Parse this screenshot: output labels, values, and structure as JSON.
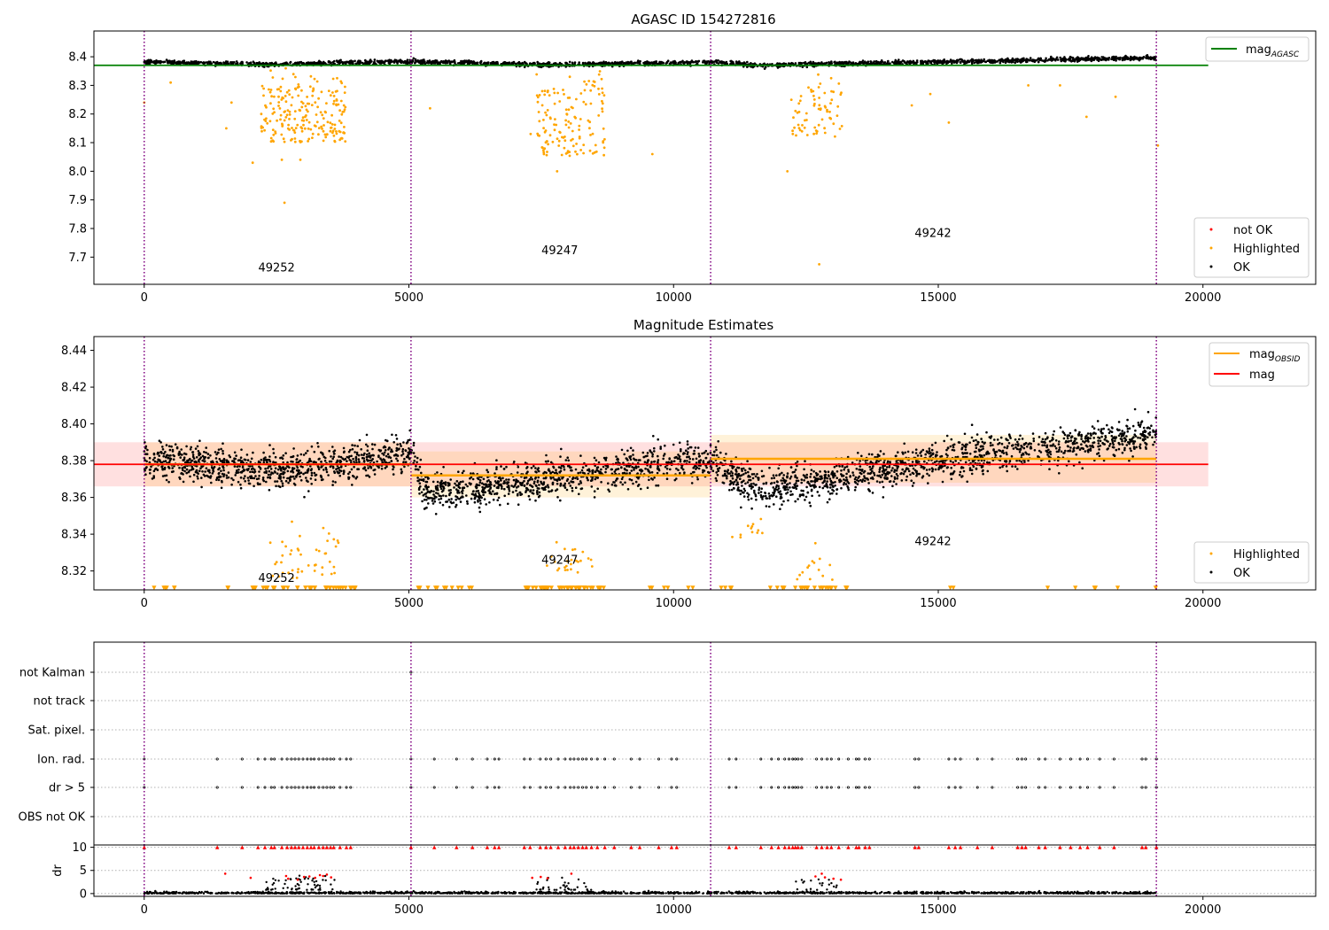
{
  "chart_data": [
    {
      "type": "scatter",
      "title": "AGASC ID 154272816",
      "xlabel": "",
      "ylabel": "",
      "xlim": [
        -950,
        22130
      ],
      "ylim": [
        7.605,
        8.49
      ],
      "x_ticks": [
        0,
        5000,
        10000,
        15000,
        20000
      ],
      "x_tick_labels": [
        "0",
        "5000",
        "10000",
        "15000",
        "20000"
      ],
      "y_ticks": [
        7.7,
        7.8,
        7.9,
        8.0,
        8.1,
        8.2,
        8.3,
        8.4
      ],
      "y_tick_labels": [
        "7.7",
        "7.8",
        "7.9",
        "8.0",
        "8.1",
        "8.2",
        "8.3",
        "8.4"
      ],
      "obs_boundaries": [
        0,
        5040,
        10700,
        19120
      ],
      "obs_labels": [
        {
          "text": "49252",
          "x": 2500,
          "y": 7.65
        },
        {
          "text": "49247",
          "x": 7850,
          "y": 7.71
        },
        {
          "text": "49242",
          "x": 14900,
          "y": 7.77
        }
      ],
      "mag_agasc": {
        "value": 8.37,
        "x_range": [
          -950,
          20100
        ]
      },
      "legend_lines": [
        {
          "name": "mag",
          "sub": "AGASC",
          "color": "#008000"
        }
      ],
      "legend_points": [
        {
          "name": "not OK",
          "color": "#ff0000"
        },
        {
          "name": "Highlighted",
          "color": "#ffa500"
        },
        {
          "name": "OK",
          "color": "#000000"
        }
      ],
      "ok_trend": [
        [
          0,
          8.382
        ],
        [
          2500,
          8.374
        ],
        [
          5040,
          8.384
        ],
        [
          7500,
          8.372
        ],
        [
          10700,
          8.381
        ],
        [
          11600,
          8.37
        ],
        [
          15000,
          8.382
        ],
        [
          19120,
          8.397
        ]
      ],
      "ok_scatter": 0.0065,
      "highlighted_clusters": [
        {
          "x": [
            2200,
            3800
          ],
          "y": [
            8.1,
            8.36
          ],
          "count": 220
        },
        {
          "x": [
            7400,
            8700
          ],
          "y": [
            8.05,
            8.36
          ],
          "count": 140
        },
        {
          "x": [
            12200,
            13200
          ],
          "y": [
            8.12,
            8.36
          ],
          "count": 70
        }
      ],
      "highlighted_points": [
        [
          0,
          8.24
        ],
        [
          500,
          8.31
        ],
        [
          1550,
          8.15
        ],
        [
          1650,
          8.24
        ],
        [
          2050,
          8.03
        ],
        [
          2600,
          8.04
        ],
        [
          2650,
          7.89
        ],
        [
          2950,
          8.04
        ],
        [
          5400,
          8.22
        ],
        [
          7300,
          8.13
        ],
        [
          7550,
          8.06
        ],
        [
          7800,
          8.0
        ],
        [
          9600,
          8.06
        ],
        [
          12150,
          8.0
        ],
        [
          12750,
          7.675
        ],
        [
          15200,
          8.17
        ],
        [
          16700,
          8.3
        ],
        [
          17300,
          8.3
        ],
        [
          17800,
          8.19
        ],
        [
          18350,
          8.26
        ],
        [
          19150,
          8.09
        ],
        [
          14500,
          8.23
        ],
        [
          14850,
          8.27
        ]
      ]
    },
    {
      "type": "scatter",
      "title": "Magnitude Estimates",
      "xlabel": "",
      "ylabel": "",
      "xlim": [
        -950,
        22130
      ],
      "ylim": [
        8.3097,
        8.4475
      ],
      "x_ticks": [
        0,
        5000,
        10000,
        15000,
        20000
      ],
      "x_tick_labels": [
        "0",
        "5000",
        "10000",
        "15000",
        "20000"
      ],
      "y_ticks": [
        8.32,
        8.34,
        8.36,
        8.38,
        8.4,
        8.42,
        8.44
      ],
      "y_tick_labels": [
        "8.32",
        "8.34",
        "8.36",
        "8.38",
        "8.40",
        "8.42",
        "8.44"
      ],
      "obs_boundaries": [
        0,
        5040,
        10700,
        19120
      ],
      "obs_labels": [
        {
          "text": "49252",
          "x": 2500,
          "y": 8.314
        },
        {
          "text": "49247",
          "x": 7850,
          "y": 8.324
        },
        {
          "text": "49242",
          "x": 14900,
          "y": 8.334
        }
      ],
      "mag": {
        "value": 8.378,
        "band": [
          8.366,
          8.39
        ],
        "x_range": [
          -950,
          20100
        ]
      },
      "mag_obsid": [
        {
          "x_range": [
            0,
            5040
          ],
          "value": 8.378,
          "band": [
            8.366,
            8.39
          ]
        },
        {
          "x_range": [
            5040,
            10700
          ],
          "value": 8.372,
          "band": [
            8.36,
            8.385
          ]
        },
        {
          "x_range": [
            10700,
            19120
          ],
          "value": 8.381,
          "band": [
            8.368,
            8.394
          ]
        }
      ],
      "legend_lines": [
        {
          "name": "mag",
          "sub": "OBSID",
          "color": "#ffa500"
        },
        {
          "name": "mag",
          "sub": "",
          "color": "#ff0000"
        }
      ],
      "legend_points": [
        {
          "name": "Highlighted",
          "color": "#ffa500"
        },
        {
          "name": "OK",
          "color": "#000000"
        }
      ],
      "ok_trend": [
        [
          0,
          8.381
        ],
        [
          2500,
          8.374
        ],
        [
          5040,
          8.384
        ],
        [
          5300,
          8.362
        ],
        [
          7500,
          8.37
        ],
        [
          10700,
          8.381
        ],
        [
          11600,
          8.364
        ],
        [
          15000,
          8.38
        ],
        [
          19120,
          8.395
        ]
      ],
      "ok_scatter": 0.0085,
      "highlighted_clusters": [
        {
          "x": [
            2300,
            3700
          ],
          "y": [
            8.315,
            8.35
          ],
          "count": 45
        },
        {
          "x": [
            7600,
            8500
          ],
          "y": [
            8.318,
            8.338
          ],
          "count": 25
        },
        {
          "x": [
            11100,
            11800
          ],
          "y": [
            8.338,
            8.35
          ],
          "count": 12
        },
        {
          "x": [
            12300,
            13000
          ],
          "y": [
            8.315,
            8.34
          ],
          "count": 14
        }
      ],
      "clipped_marker_y": 8.3107,
      "clipped_groups": [
        [
          0,
          600,
          6
        ],
        [
          1500,
          1700,
          2
        ],
        [
          2000,
          4000,
          40
        ],
        [
          5000,
          6200,
          12
        ],
        [
          7200,
          8700,
          45
        ],
        [
          9500,
          10500,
          6
        ],
        [
          10700,
          11200,
          4
        ],
        [
          11800,
          13300,
          25
        ],
        [
          14900,
          15300,
          2
        ],
        [
          16600,
          18500,
          5
        ],
        [
          19100,
          19120,
          1
        ]
      ]
    },
    {
      "type": "scatter",
      "title": "",
      "xlabel": "",
      "ylabel": "",
      "xlim": [
        -950,
        22130
      ],
      "obs_boundaries": [
        0,
        5040,
        10700,
        19120
      ],
      "flag_rows": [
        "not Kalman",
        "not track",
        "Sat. pixel.",
        "Ion. rad.",
        "dr > 5",
        "OBS not OK"
      ],
      "flag_x": [
        0,
        1380,
        1850,
        2150,
        2280,
        2400,
        2460,
        2600,
        2700,
        2780,
        2850,
        2920,
        3000,
        3080,
        3150,
        3210,
        3300,
        3380,
        3450,
        3520,
        3580,
        3700,
        3820,
        3900,
        5040,
        5480,
        5900,
        6200,
        6480,
        6620,
        6700,
        7180,
        7290,
        7480,
        7590,
        7680,
        7820,
        7950,
        8050,
        8120,
        8200,
        8280,
        8350,
        8450,
        8560,
        8700,
        8880,
        9200,
        9360,
        9720,
        9960,
        10060,
        11050,
        11180,
        11650,
        11850,
        11980,
        12100,
        12180,
        12250,
        12300,
        12350,
        12420,
        12700,
        12800,
        12900,
        12980,
        13120,
        13300,
        13450,
        13500,
        13620,
        13700,
        14560,
        14630,
        15200,
        15320,
        15420,
        15740,
        16020,
        16500,
        16580,
        16650,
        16900,
        17020,
        17300,
        17500,
        17680,
        17820,
        18050,
        18320,
        18850,
        18920,
        19120
      ],
      "not_kalman_x": [
        5040
      ]
    },
    {
      "type": "scatter",
      "title": "",
      "xlabel": "",
      "ylabel": "dr",
      "xlim": [
        -950,
        22130
      ],
      "ylim": [
        -0.6,
        10.5
      ],
      "x_ticks": [
        0,
        5000,
        10000,
        15000,
        20000
      ],
      "x_tick_labels": [
        "0",
        "5000",
        "10000",
        "15000",
        "20000"
      ],
      "y_ticks": [
        0,
        5,
        10
      ],
      "y_tick_labels": [
        "0",
        "5",
        "10"
      ],
      "obs_boundaries": [
        0,
        5040,
        10700,
        19120
      ],
      "dr_baseline_max": 0.9,
      "dr_clip": 10,
      "dr_elevated": [
        {
          "x": [
            2300,
            3600
          ],
          "max": 4.0,
          "count": 60
        },
        {
          "x": [
            7400,
            8500
          ],
          "max": 3.5,
          "count": 35
        },
        {
          "x": [
            12300,
            13100
          ],
          "max": 3.2,
          "count": 20
        }
      ],
      "dr_red_points": [
        [
          1530,
          4.3
        ],
        [
          2010,
          3.4
        ],
        [
          2680,
          3.8
        ],
        [
          2720,
          3.2
        ],
        [
          2900,
          3.0
        ],
        [
          3020,
          3.6
        ],
        [
          3120,
          3.7
        ],
        [
          3230,
          3.4
        ],
        [
          3320,
          4.0
        ],
        [
          3380,
          3.8
        ],
        [
          3450,
          4.1
        ],
        [
          3530,
          3.5
        ],
        [
          7330,
          3.4
        ],
        [
          7490,
          3.6
        ],
        [
          7620,
          3.3
        ],
        [
          8070,
          4.3
        ],
        [
          12800,
          4.3
        ],
        [
          12680,
          3.7
        ],
        [
          12860,
          3.5
        ],
        [
          13020,
          3.2
        ],
        [
          13160,
          3.0
        ]
      ]
    }
  ]
}
